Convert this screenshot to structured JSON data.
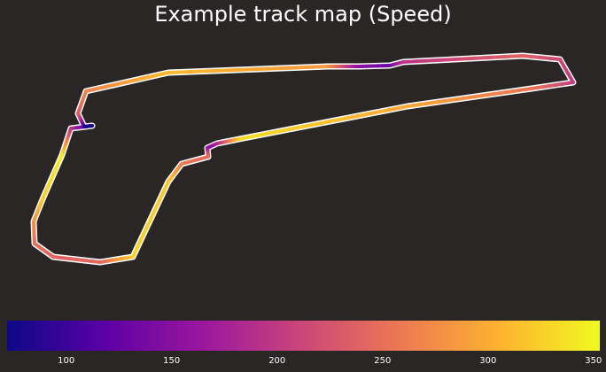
{
  "chart_data": {
    "type": "line",
    "title": "Example track map (Speed)",
    "colorbar": {
      "colormap": "plasma",
      "range": [
        72,
        353
      ],
      "ticks": [
        100,
        150,
        200,
        250,
        300,
        350
      ],
      "stops": [
        "#0d0887",
        "#5c01a6",
        "#9c179e",
        "#cc4778",
        "#ed7953",
        "#fdb42f",
        "#f0f921"
      ]
    },
    "series": [
      {
        "values": [
          {
            "x": 95,
            "y": 143,
            "v": 78
          },
          {
            "x": 88,
            "y": 128,
            "v": 232
          },
          {
            "x": 97,
            "y": 103,
            "v": 268
          },
          {
            "x": 190,
            "y": 82,
            "v": 310
          },
          {
            "x": 370,
            "y": 75,
            "v": 285
          },
          {
            "x": 405,
            "y": 75,
            "v": 155
          },
          {
            "x": 440,
            "y": 74,
            "v": 130
          },
          {
            "x": 455,
            "y": 70,
            "v": 195
          },
          {
            "x": 590,
            "y": 63,
            "v": 240
          },
          {
            "x": 632,
            "y": 67,
            "v": 215
          },
          {
            "x": 647,
            "y": 93,
            "v": 200
          },
          {
            "x": 600,
            "y": 100,
            "v": 255
          },
          {
            "x": 460,
            "y": 120,
            "v": 295
          },
          {
            "x": 270,
            "y": 157,
            "v": 335
          },
          {
            "x": 245,
            "y": 162,
            "v": 195
          },
          {
            "x": 234,
            "y": 167,
            "v": 150
          },
          {
            "x": 235,
            "y": 177,
            "v": 245
          },
          {
            "x": 205,
            "y": 185,
            "v": 258
          },
          {
            "x": 190,
            "y": 205,
            "v": 318
          },
          {
            "x": 150,
            "y": 290,
            "v": 328
          },
          {
            "x": 113,
            "y": 296,
            "v": 245
          },
          {
            "x": 60,
            "y": 290,
            "v": 240
          },
          {
            "x": 39,
            "y": 275,
            "v": 250
          },
          {
            "x": 38,
            "y": 250,
            "v": 275
          },
          {
            "x": 48,
            "y": 225,
            "v": 320
          },
          {
            "x": 70,
            "y": 175,
            "v": 345
          },
          {
            "x": 80,
            "y": 145,
            "v": 205
          },
          {
            "x": 104,
            "y": 142,
            "v": 80
          },
          {
            "x": 95,
            "y": 143,
            "v": 78
          }
        ]
      }
    ]
  }
}
